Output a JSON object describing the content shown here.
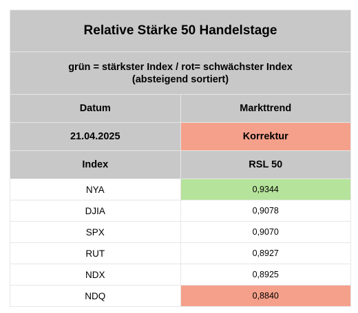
{
  "title": "Relative Stärke 50 Handelstage",
  "subtitle_line1": "grün = stärkster Index / rot= schwächster Index",
  "subtitle_line2": "(absteigend sortiert)",
  "header": {
    "date_label": "Datum",
    "trend_label": "Markttrend",
    "date_value": "21.04.2025",
    "trend_value": "Korrektur",
    "index_label": "Index",
    "rsl_label": "RSL 50"
  },
  "colors": {
    "header_gray": "#c8c8c8",
    "strongest_green": "#b6e39b",
    "weakest_red": "#f5a08a",
    "correction_red": "#f5a08a"
  },
  "rows": [
    {
      "index": "NYA",
      "rsl": "0,9344",
      "highlight": "strongest"
    },
    {
      "index": "DJIA",
      "rsl": "0,9078",
      "highlight": "none"
    },
    {
      "index": "SPX",
      "rsl": "0,9070",
      "highlight": "none"
    },
    {
      "index": "RUT",
      "rsl": "0,8927",
      "highlight": "none"
    },
    {
      "index": "NDX",
      "rsl": "0,8925",
      "highlight": "none"
    },
    {
      "index": "NDQ",
      "rsl": "0,8840",
      "highlight": "weakest"
    }
  ]
}
